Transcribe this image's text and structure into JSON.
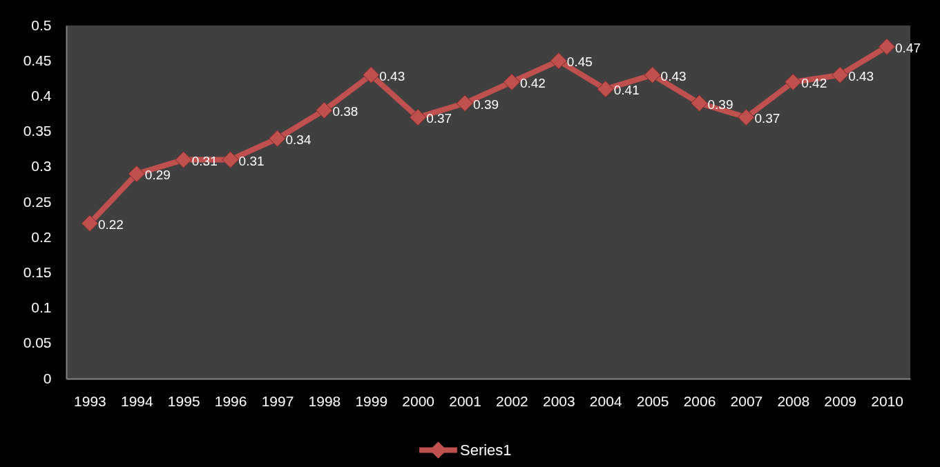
{
  "chart_data": {
    "type": "line",
    "categories": [
      "1993",
      "1994",
      "1995",
      "1996",
      "1997",
      "1998",
      "1999",
      "2000",
      "2001",
      "2002",
      "2003",
      "2004",
      "2005",
      "2006",
      "2007",
      "2008",
      "2009",
      "2010"
    ],
    "series": [
      {
        "name": "Series1",
        "color": "#c0504d",
        "values": [
          0.22,
          0.29,
          0.31,
          0.31,
          0.34,
          0.38,
          0.43,
          0.37,
          0.39,
          0.42,
          0.45,
          0.41,
          0.43,
          0.39,
          0.37,
          0.42,
          0.43,
          0.47
        ]
      }
    ],
    "ylim": [
      0,
      0.5
    ],
    "yticks": [
      0,
      0.05,
      0.1,
      0.15,
      0.2,
      0.25,
      0.3,
      0.35,
      0.4,
      0.45,
      0.5
    ],
    "grid": false,
    "legend": "bottom",
    "marker": "diamond",
    "line_style": "solid",
    "data_labels": true
  }
}
